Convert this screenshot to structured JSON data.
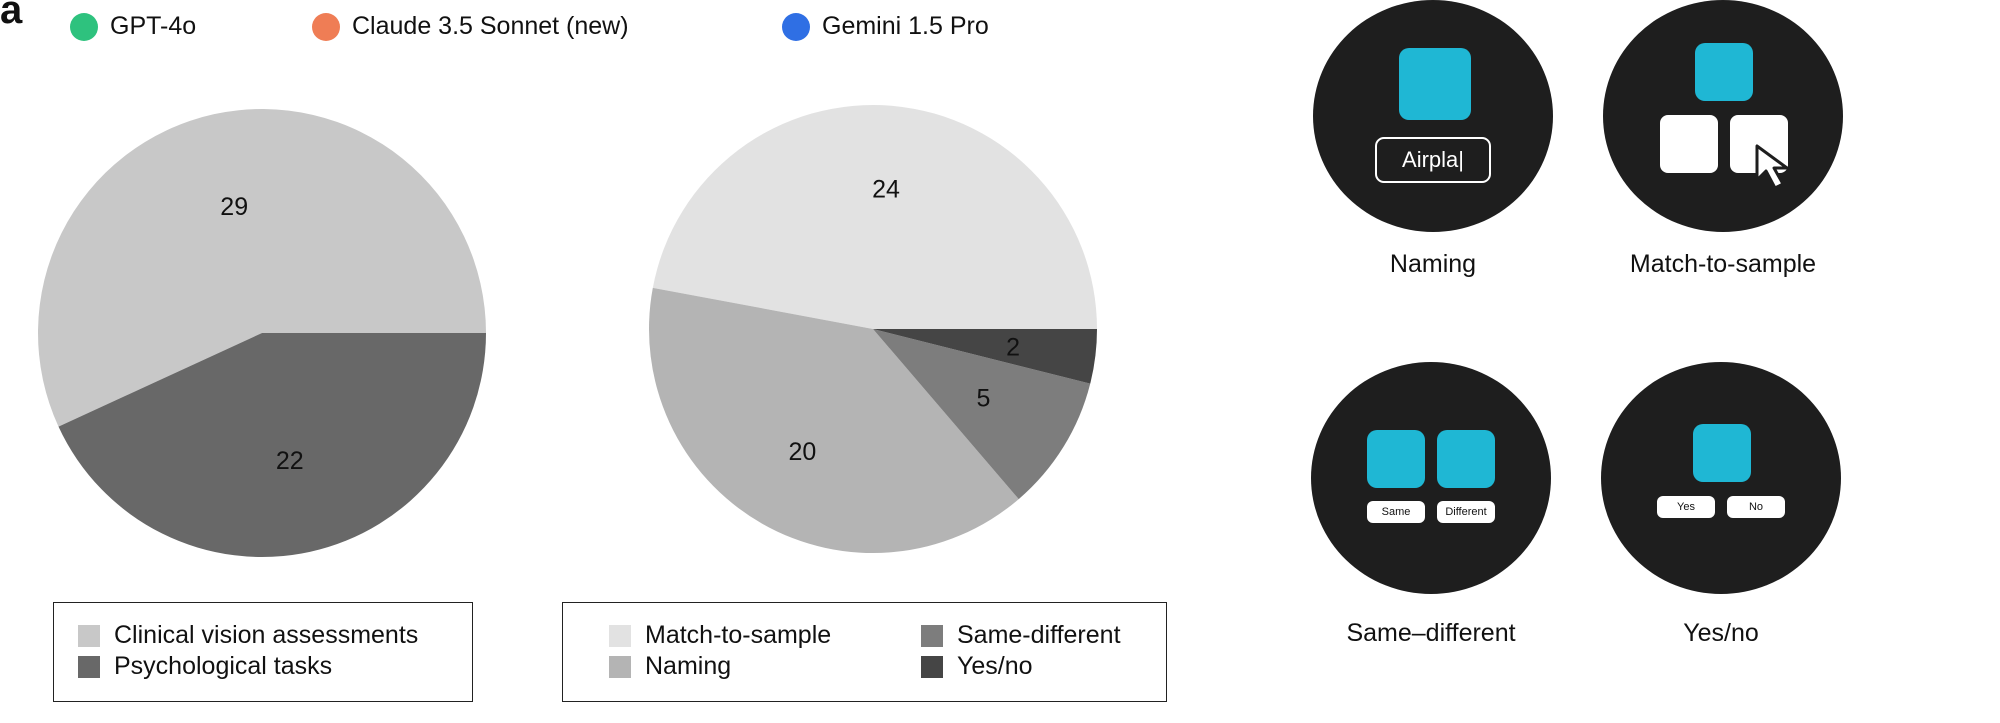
{
  "panel_letter": "a",
  "models": [
    {
      "name": "GPT-4o",
      "color": "#2ec27e"
    },
    {
      "name": "Claude 3.5 Sonnet (new)",
      "color": "#ef7d55"
    },
    {
      "name": "Gemini 1.5 Pro",
      "color": "#2f6fe4"
    }
  ],
  "chart_data": [
    {
      "type": "pie",
      "slices": [
        {
          "label": "Clinical vision assessments",
          "value": 29,
          "color": "#c8c8c8"
        },
        {
          "label": "Psychological tasks",
          "value": 22,
          "color": "#686868"
        }
      ]
    },
    {
      "type": "pie",
      "slices": [
        {
          "label": "Match-to-sample",
          "value": 24,
          "color": "#e2e2e2"
        },
        {
          "label": "Naming",
          "value": 20,
          "color": "#b4b4b4"
        },
        {
          "label": "Same-different",
          "value": 5,
          "color": "#7d7d7d"
        },
        {
          "label": "Yes/no",
          "value": 2,
          "color": "#454545"
        }
      ]
    }
  ],
  "legend1": [
    {
      "label": "Clinical vision assessments",
      "color": "#c8c8c8"
    },
    {
      "label": "Psychological tasks",
      "color": "#686868"
    }
  ],
  "legend2": [
    {
      "label": "Match-to-sample",
      "color": "#e2e2e2"
    },
    {
      "label": "Naming",
      "color": "#b4b4b4"
    },
    {
      "label": "Same-different",
      "color": "#7d7d7d"
    },
    {
      "label": "Yes/no",
      "color": "#454545"
    }
  ],
  "tasks": {
    "naming": {
      "label": "Naming",
      "input_text": "Airpla|"
    },
    "match": {
      "label": "Match-to-sample"
    },
    "same_diff": {
      "label": "Same–different",
      "same": "Same",
      "different": "Different"
    },
    "yes_no": {
      "label": "Yes/no",
      "yes": "Yes",
      "no": "No"
    }
  },
  "colors": {
    "tile": "#1fb7d4",
    "circle": "#1e1e1e"
  }
}
